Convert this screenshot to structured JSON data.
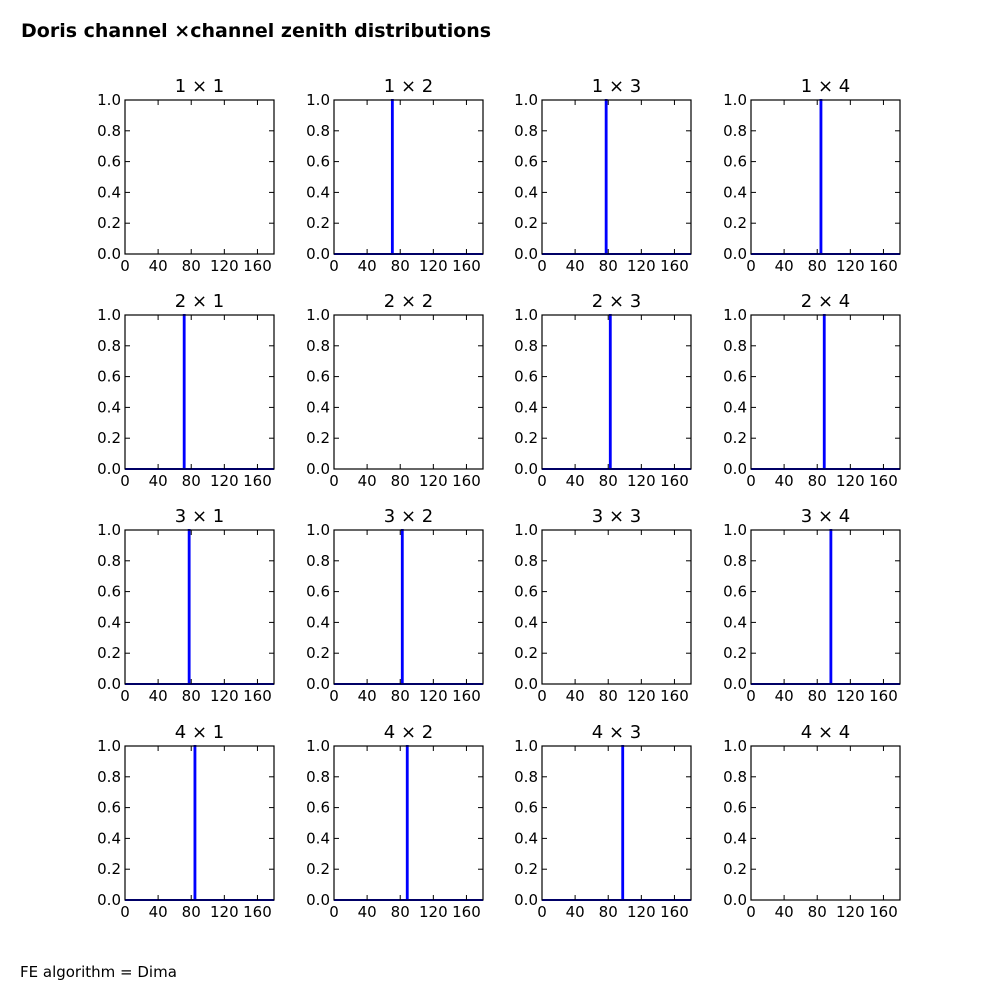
{
  "figure": {
    "title": "Doris channel ×channel zenith distributions",
    "footnote": "FE algorithm = Dima"
  },
  "chart_data": [
    {
      "type": "line",
      "title": "1 × 1",
      "xlim": [
        0,
        180
      ],
      "ylim": [
        0,
        1
      ],
      "xticks": [
        "0",
        "40",
        "80",
        "120",
        "160"
      ],
      "yticks": [
        "0.0",
        "0.2",
        "0.4",
        "0.6",
        "0.8",
        "1.0"
      ],
      "series": []
    },
    {
      "type": "line",
      "title": "1 × 2",
      "xlim": [
        0,
        180
      ],
      "ylim": [
        0,
        1
      ],
      "xticks": [
        "0",
        "40",
        "80",
        "120",
        "160"
      ],
      "yticks": [
        "0.0",
        "0.2",
        "0.4",
        "0.6",
        "0.8",
        "1.0"
      ],
      "series": [
        {
          "color": "#0000ff",
          "x": [
            0,
            70,
            70,
            71,
            71,
            180
          ],
          "y": [
            0,
            0,
            1,
            1,
            0,
            0
          ]
        }
      ]
    },
    {
      "type": "line",
      "title": "1 × 3",
      "xlim": [
        0,
        180
      ],
      "ylim": [
        0,
        1
      ],
      "xticks": [
        "0",
        "40",
        "80",
        "120",
        "160"
      ],
      "yticks": [
        "0.0",
        "0.2",
        "0.4",
        "0.6",
        "0.8",
        "1.0"
      ],
      "series": [
        {
          "color": "#0000ff",
          "x": [
            0,
            77,
            77,
            78,
            78,
            180
          ],
          "y": [
            0,
            0,
            1,
            1,
            0,
            0
          ]
        }
      ]
    },
    {
      "type": "line",
      "title": "1 × 4",
      "xlim": [
        0,
        180
      ],
      "ylim": [
        0,
        1
      ],
      "xticks": [
        "0",
        "40",
        "80",
        "120",
        "160"
      ],
      "yticks": [
        "0.0",
        "0.2",
        "0.4",
        "0.6",
        "0.8",
        "1.0"
      ],
      "series": [
        {
          "color": "#0000ff",
          "x": [
            0,
            84,
            84,
            85,
            85,
            180
          ],
          "y": [
            0,
            0,
            1,
            1,
            0,
            0
          ]
        }
      ]
    },
    {
      "type": "line",
      "title": "2 × 1",
      "xlim": [
        0,
        180
      ],
      "ylim": [
        0,
        1
      ],
      "xticks": [
        "0",
        "40",
        "80",
        "120",
        "160"
      ],
      "yticks": [
        "0.0",
        "0.2",
        "0.4",
        "0.6",
        "0.8",
        "1.0"
      ],
      "series": [
        {
          "color": "#0000ff",
          "x": [
            0,
            71,
            71,
            72,
            72,
            180
          ],
          "y": [
            0,
            0,
            1,
            1,
            0,
            0
          ]
        }
      ]
    },
    {
      "type": "line",
      "title": "2 × 2",
      "xlim": [
        0,
        180
      ],
      "ylim": [
        0,
        1
      ],
      "xticks": [
        "0",
        "40",
        "80",
        "120",
        "160"
      ],
      "yticks": [
        "0.0",
        "0.2",
        "0.4",
        "0.6",
        "0.8",
        "1.0"
      ],
      "series": []
    },
    {
      "type": "line",
      "title": "2 × 3",
      "xlim": [
        0,
        180
      ],
      "ylim": [
        0,
        1
      ],
      "xticks": [
        "0",
        "40",
        "80",
        "120",
        "160"
      ],
      "yticks": [
        "0.0",
        "0.2",
        "0.4",
        "0.6",
        "0.8",
        "1.0"
      ],
      "series": [
        {
          "color": "#0000ff",
          "x": [
            0,
            82,
            82,
            83,
            83,
            180
          ],
          "y": [
            0,
            0,
            1,
            1,
            0,
            0
          ]
        }
      ]
    },
    {
      "type": "line",
      "title": "2 × 4",
      "xlim": [
        0,
        180
      ],
      "ylim": [
        0,
        1
      ],
      "xticks": [
        "0",
        "40",
        "80",
        "120",
        "160"
      ],
      "yticks": [
        "0.0",
        "0.2",
        "0.4",
        "0.6",
        "0.8",
        "1.0"
      ],
      "series": [
        {
          "color": "#0000ff",
          "x": [
            0,
            88,
            88,
            89,
            89,
            180
          ],
          "y": [
            0,
            0,
            1,
            1,
            0,
            0
          ]
        }
      ]
    },
    {
      "type": "line",
      "title": "3 × 1",
      "xlim": [
        0,
        180
      ],
      "ylim": [
        0,
        1
      ],
      "xticks": [
        "0",
        "40",
        "80",
        "120",
        "160"
      ],
      "yticks": [
        "0.0",
        "0.2",
        "0.4",
        "0.6",
        "0.8",
        "1.0"
      ],
      "series": [
        {
          "color": "#0000ff",
          "x": [
            0,
            77,
            77,
            78,
            78,
            180
          ],
          "y": [
            0,
            0,
            1,
            1,
            0,
            0
          ]
        }
      ]
    },
    {
      "type": "line",
      "title": "3 × 2",
      "xlim": [
        0,
        180
      ],
      "ylim": [
        0,
        1
      ],
      "xticks": [
        "0",
        "40",
        "80",
        "120",
        "160"
      ],
      "yticks": [
        "0.0",
        "0.2",
        "0.4",
        "0.6",
        "0.8",
        "1.0"
      ],
      "series": [
        {
          "color": "#0000ff",
          "x": [
            0,
            82,
            82,
            83,
            83,
            180
          ],
          "y": [
            0,
            0,
            1,
            1,
            0,
            0
          ]
        }
      ]
    },
    {
      "type": "line",
      "title": "3 × 3",
      "xlim": [
        0,
        180
      ],
      "ylim": [
        0,
        1
      ],
      "xticks": [
        "0",
        "40",
        "80",
        "120",
        "160"
      ],
      "yticks": [
        "0.0",
        "0.2",
        "0.4",
        "0.6",
        "0.8",
        "1.0"
      ],
      "series": []
    },
    {
      "type": "line",
      "title": "3 × 4",
      "xlim": [
        0,
        180
      ],
      "ylim": [
        0,
        1
      ],
      "xticks": [
        "0",
        "40",
        "80",
        "120",
        "160"
      ],
      "yticks": [
        "0.0",
        "0.2",
        "0.4",
        "0.6",
        "0.8",
        "1.0"
      ],
      "series": [
        {
          "color": "#0000ff",
          "x": [
            0,
            96,
            96,
            97,
            97,
            180
          ],
          "y": [
            0,
            0,
            1,
            1,
            0,
            0
          ]
        }
      ]
    },
    {
      "type": "line",
      "title": "4 × 1",
      "xlim": [
        0,
        180
      ],
      "ylim": [
        0,
        1
      ],
      "xticks": [
        "0",
        "40",
        "80",
        "120",
        "160"
      ],
      "yticks": [
        "0.0",
        "0.2",
        "0.4",
        "0.6",
        "0.8",
        "1.0"
      ],
      "series": [
        {
          "color": "#0000ff",
          "x": [
            0,
            84,
            84,
            85,
            85,
            180
          ],
          "y": [
            0,
            0,
            1,
            1,
            0,
            0
          ]
        }
      ]
    },
    {
      "type": "line",
      "title": "4 × 2",
      "xlim": [
        0,
        180
      ],
      "ylim": [
        0,
        1
      ],
      "xticks": [
        "0",
        "40",
        "80",
        "120",
        "160"
      ],
      "yticks": [
        "0.0",
        "0.2",
        "0.4",
        "0.6",
        "0.8",
        "1.0"
      ],
      "series": [
        {
          "color": "#0000ff",
          "x": [
            0,
            88,
            88,
            89,
            89,
            180
          ],
          "y": [
            0,
            0,
            1,
            1,
            0,
            0
          ]
        }
      ]
    },
    {
      "type": "line",
      "title": "4 × 3",
      "xlim": [
        0,
        180
      ],
      "ylim": [
        0,
        1
      ],
      "xticks": [
        "0",
        "40",
        "80",
        "120",
        "160"
      ],
      "yticks": [
        "0.0",
        "0.2",
        "0.4",
        "0.6",
        "0.8",
        "1.0"
      ],
      "series": [
        {
          "color": "#0000ff",
          "x": [
            0,
            97,
            97,
            98,
            98,
            180
          ],
          "y": [
            0,
            0,
            1,
            1,
            0,
            0
          ]
        }
      ]
    },
    {
      "type": "line",
      "title": "4 × 4",
      "xlim": [
        0,
        180
      ],
      "ylim": [
        0,
        1
      ],
      "xticks": [
        "0",
        "40",
        "80",
        "120",
        "160"
      ],
      "yticks": [
        "0.0",
        "0.2",
        "0.4",
        "0.6",
        "0.8",
        "1.0"
      ],
      "series": []
    }
  ]
}
